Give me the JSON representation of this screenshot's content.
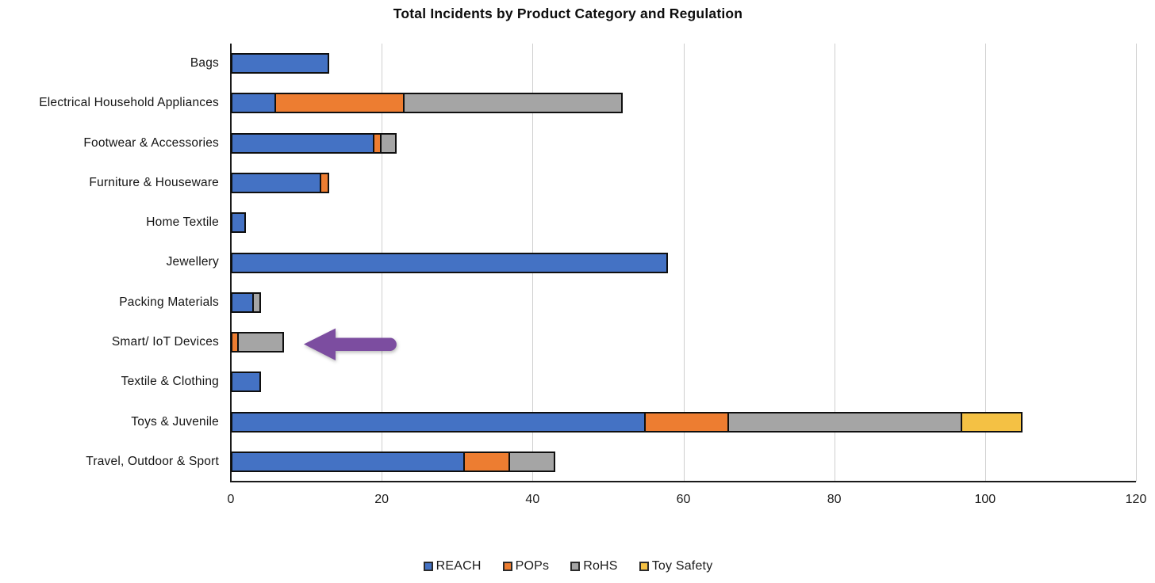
{
  "title": "Total Incidents by Product Category and Regulation",
  "chart_data": {
    "type": "bar",
    "orientation": "horizontal",
    "stacked": true,
    "title": "Total Incidents by Product Category and Regulation",
    "categories": [
      "Bags",
      "Electrical Household Appliances",
      "Footwear & Accessories",
      "Furniture & Houseware",
      "Home Textile",
      "Jewellery",
      "Packing Materials",
      "Smart/ IoT Devices",
      "Textile & Clothing",
      "Toys & Juvenile",
      "Travel, Outdoor & Sport"
    ],
    "series": [
      {
        "name": "REACH",
        "color": "#4472C4",
        "values": [
          13,
          6,
          19,
          12,
          2,
          58,
          3,
          0,
          4,
          55,
          31
        ]
      },
      {
        "name": "POPs",
        "color": "#ED7D31",
        "values": [
          0,
          17,
          1,
          1,
          0,
          0,
          0,
          1,
          0,
          11,
          6
        ]
      },
      {
        "name": "RoHS",
        "color": "#A5A5A5",
        "values": [
          0,
          29,
          2,
          0,
          0,
          0,
          1,
          6,
          0,
          31,
          6
        ]
      },
      {
        "name": "Toy Safety",
        "color": "#F4C144",
        "values": [
          0,
          0,
          0,
          0,
          0,
          0,
          0,
          0,
          0,
          8,
          0
        ]
      }
    ],
    "xlabel": "",
    "ylabel": "",
    "xlim": [
      0,
      120
    ],
    "x_ticks": [
      0,
      20,
      40,
      60,
      80,
      100,
      120
    ],
    "grid": "vertical",
    "legend_position": "bottom"
  },
  "annotation": {
    "shape": "arrow",
    "direction": "left",
    "color": "#7C4DA0",
    "target_category": "Smart/ IoT Devices"
  }
}
